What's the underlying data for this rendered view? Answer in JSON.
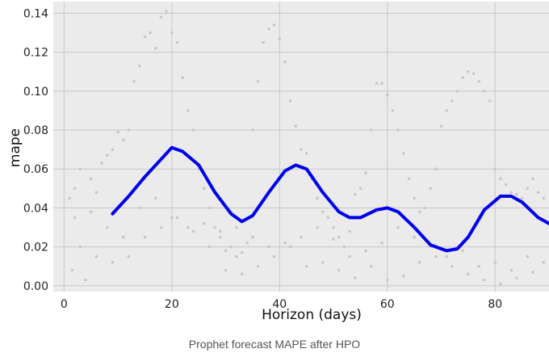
{
  "caption": "Prophet forecast MAPE after HPO",
  "colors": {
    "line": "#0000ee",
    "scatter": "#c8c8c8",
    "plot_bg": "#ebebeb",
    "grid": "#c8c8c8"
  },
  "chart_data": {
    "type": "line",
    "title": "",
    "xlabel": "Horizon (days)",
    "ylabel": "mape",
    "xlim": [
      -2,
      90
    ],
    "ylim": [
      -0.003,
      0.146
    ],
    "xticks": [
      0,
      20,
      40,
      60,
      80
    ],
    "yticks": [
      0.0,
      0.02,
      0.04,
      0.06,
      0.08,
      0.1,
      0.12,
      0.14
    ],
    "ytick_labels": [
      "0.00",
      "0.02",
      "0.04",
      "0.06",
      "0.08",
      "0.10",
      "0.12",
      "0.14"
    ],
    "grid": true,
    "series": [
      {
        "style": "line",
        "x": [
          9,
          12,
          15,
          18,
          20,
          22,
          25,
          28,
          31,
          33,
          35,
          38,
          41,
          43,
          45,
          48,
          51,
          53,
          55,
          58,
          60,
          62,
          65,
          68,
          71,
          73,
          75,
          78,
          81,
          83,
          85,
          88,
          90
        ],
        "y": [
          0.037,
          0.046,
          0.056,
          0.065,
          0.071,
          0.069,
          0.062,
          0.048,
          0.037,
          0.033,
          0.036,
          0.048,
          0.059,
          0.062,
          0.06,
          0.048,
          0.038,
          0.035,
          0.035,
          0.039,
          0.04,
          0.038,
          0.03,
          0.021,
          0.018,
          0.019,
          0.025,
          0.039,
          0.046,
          0.046,
          0.043,
          0.035,
          0.032
        ]
      },
      {
        "style": "scatter",
        "x": [
          1,
          1.5,
          2,
          3,
          4,
          5,
          6,
          7,
          8,
          9,
          10,
          11,
          12,
          13,
          14,
          15,
          16,
          17,
          18,
          19,
          20,
          21,
          22,
          23,
          24,
          25,
          26,
          27,
          28,
          29,
          30,
          31,
          32,
          33,
          34,
          35,
          36,
          37,
          38,
          39,
          40,
          41,
          42,
          43,
          44,
          45,
          46,
          47,
          48,
          49,
          50,
          51,
          52,
          53,
          54,
          55,
          56,
          57,
          58,
          59,
          60,
          61,
          62,
          63,
          64,
          65,
          66,
          67,
          68,
          69,
          70,
          71,
          72,
          73,
          74,
          75,
          76,
          77,
          78,
          79,
          80,
          81,
          82,
          83,
          84,
          85,
          86,
          87,
          88,
          89,
          3,
          6,
          9,
          12,
          15,
          18,
          21,
          24,
          27,
          30,
          33,
          36,
          39,
          42,
          45,
          48,
          51,
          54,
          57,
          60,
          63,
          66,
          69,
          72,
          75,
          78,
          81,
          84,
          87,
          2,
          5,
          8,
          11,
          14,
          17,
          20,
          23,
          26,
          29,
          32,
          35,
          38,
          41,
          44,
          47,
          50,
          53,
          56,
          59,
          62,
          65,
          68,
          71,
          74,
          77,
          80,
          83,
          86,
          89
        ],
        "y": [
          0.045,
          0.008,
          0.05,
          0.06,
          0.003,
          0.055,
          0.048,
          0.063,
          0.067,
          0.07,
          0.079,
          0.075,
          0.08,
          0.105,
          0.113,
          0.128,
          0.13,
          0.122,
          0.138,
          0.141,
          0.13,
          0.125,
          0.107,
          0.09,
          0.08,
          0.06,
          0.05,
          0.04,
          0.03,
          0.025,
          0.018,
          0.02,
          0.015,
          0.017,
          0.022,
          0.08,
          0.105,
          0.125,
          0.132,
          0.134,
          0.127,
          0.115,
          0.095,
          0.082,
          0.07,
          0.068,
          0.055,
          0.045,
          0.038,
          0.035,
          0.03,
          0.025,
          0.02,
          0.028,
          0.047,
          0.05,
          0.058,
          0.08,
          0.104,
          0.104,
          0.098,
          0.09,
          0.08,
          0.068,
          0.055,
          0.045,
          0.038,
          0.04,
          0.05,
          0.06,
          0.082,
          0.09,
          0.095,
          0.1,
          0.107,
          0.11,
          0.109,
          0.105,
          0.1,
          0.095,
          0.06,
          0.055,
          0.052,
          0.048,
          0.047,
          0.045,
          0.05,
          0.055,
          0.048,
          0.045,
          0.02,
          0.015,
          0.012,
          0.015,
          0.025,
          0.03,
          0.035,
          0.028,
          0.02,
          0.008,
          0.006,
          0.01,
          0.015,
          0.02,
          0.01,
          0.012,
          0.008,
          0.004,
          0.01,
          0.003,
          0.005,
          0.012,
          0.015,
          0.01,
          0.006,
          0.003,
          0.001,
          0.004,
          0.007,
          0.035,
          0.038,
          0.03,
          0.025,
          0.04,
          0.045,
          0.035,
          0.03,
          0.032,
          0.028,
          0.03,
          0.025,
          0.02,
          0.022,
          0.025,
          0.03,
          0.024,
          0.015,
          0.018,
          0.022,
          0.03,
          0.025,
          0.02,
          0.015,
          0.018,
          0.01,
          0.012,
          0.008,
          0.015,
          0.012
        ]
      }
    ]
  }
}
